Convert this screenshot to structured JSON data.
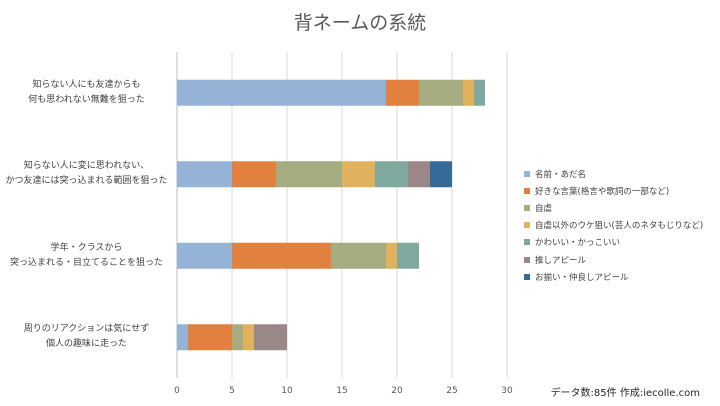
{
  "chart_data": {
    "type": "bar",
    "orientation": "horizontal",
    "stacked": true,
    "title": "背ネームの系統",
    "categories": [
      [
        "知らない人にも友達からも",
        "何も思われない無難を狙った"
      ],
      [
        "知らない人に変に思われない、",
        "かつ友達には突っ込まれる範囲を狙った"
      ],
      [
        "学年・クラスから",
        "突っ込まれる・目立てることを狙った"
      ],
      [
        "周りのリアクションは気にせず",
        "個人の趣味に走った"
      ]
    ],
    "series": [
      {
        "name": "名前・あだ名",
        "color": "#95B3D7",
        "values": [
          19,
          5,
          5,
          1
        ]
      },
      {
        "name": "好きな言葉(格言や歌詞の一部など)",
        "color": "#E2803F",
        "values": [
          3,
          4,
          9,
          4
        ]
      },
      {
        "name": "自虐",
        "color": "#A5AD80",
        "values": [
          4,
          6,
          5,
          1
        ]
      },
      {
        "name": "自虐以外のウケ狙い(芸人のネタもじりなど)",
        "color": "#E0B25E",
        "values": [
          1,
          3,
          1,
          1
        ]
      },
      {
        "name": "かわいい・かっこいい",
        "color": "#7FA89E",
        "values": [
          1,
          3,
          2,
          0
        ]
      },
      {
        "name": "推しアピール",
        "color": "#9A8787",
        "values": [
          0,
          2,
          0,
          3
        ]
      },
      {
        "name": "お揃い・仲良しアピール",
        "color": "#356B96",
        "values": [
          0,
          2,
          0,
          0
        ]
      }
    ],
    "xlim": [
      0,
      30
    ],
    "xticks": [
      0,
      5,
      10,
      15,
      20,
      25,
      30
    ],
    "grid": true,
    "legend_position": "right"
  },
  "footnote": "データ数:85件 作成:iecolle.com"
}
